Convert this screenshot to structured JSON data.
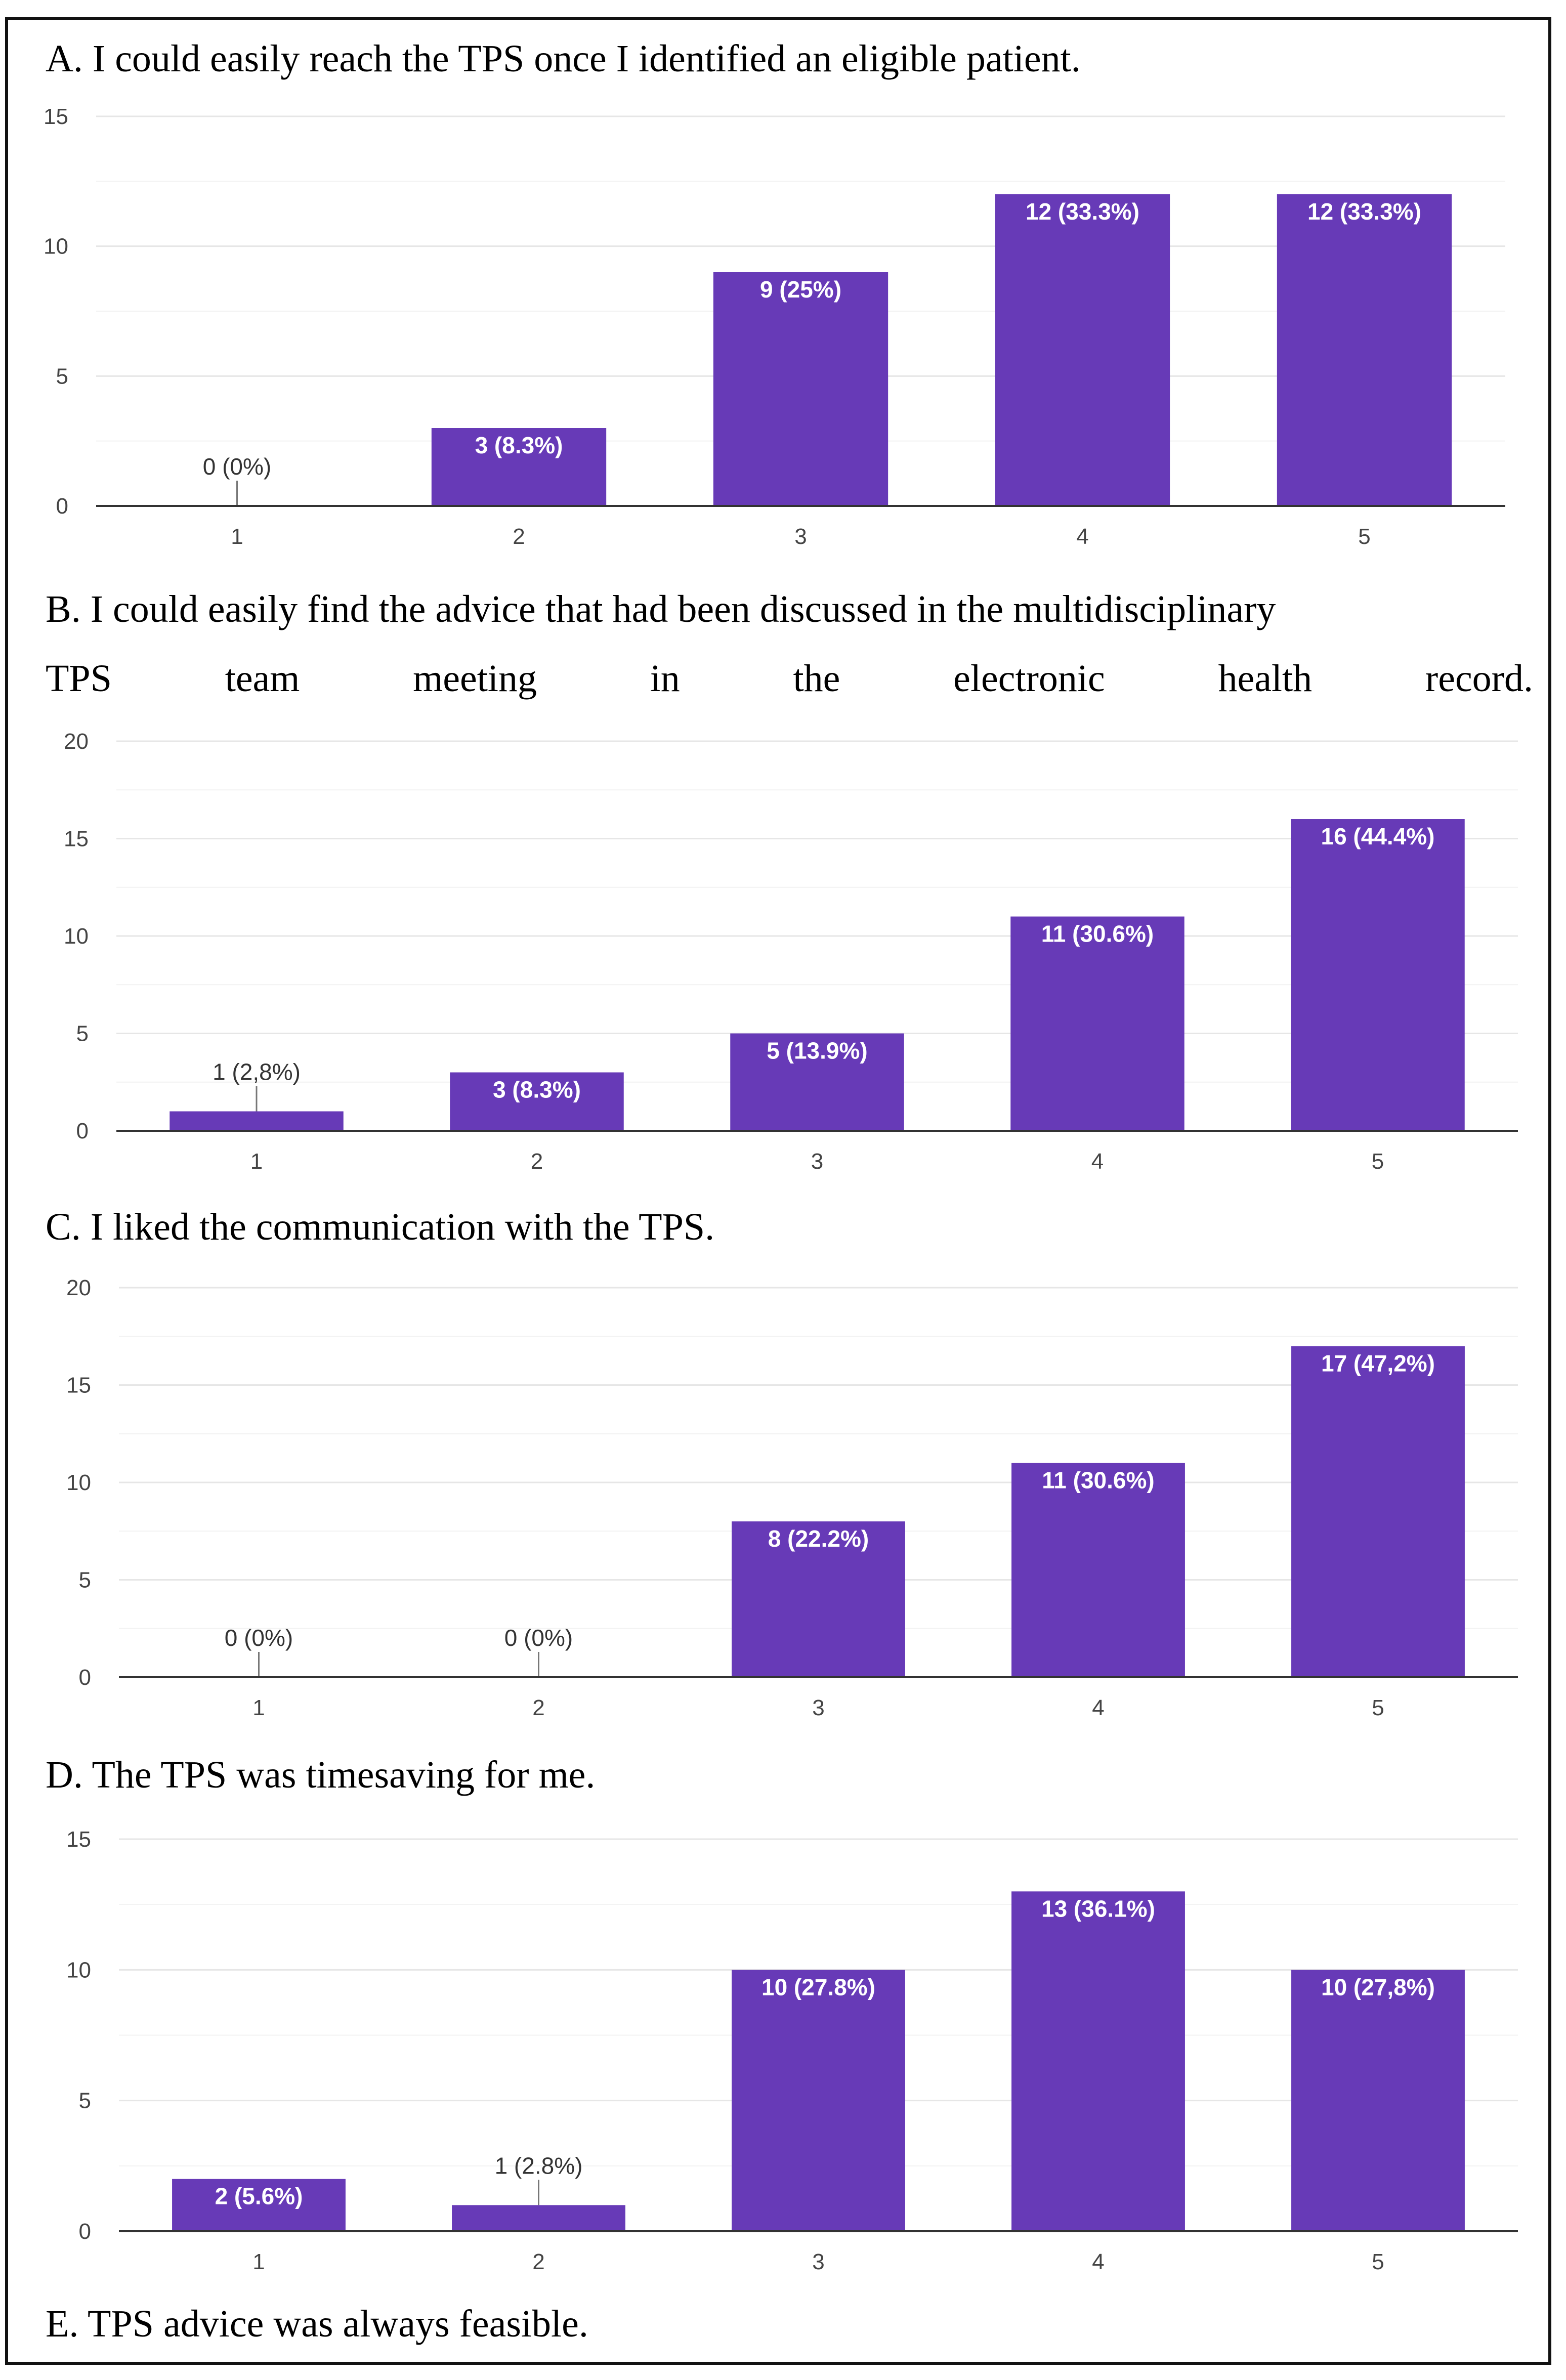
{
  "colors": {
    "bar": "#673ab7",
    "grid": "#e6e6e6",
    "axis": "#333333",
    "frame": "#111111"
  },
  "captions": {
    "a": "A. I could easily reach the TPS once I identified an eligible patient.",
    "b_line1": "B. I could easily find the advice that had been discussed in the multidisciplinary",
    "b_line2": "TPS team meeting in the electronic health record.",
    "c": "C. I liked the communication with the TPS.",
    "d": "D. The TPS was timesaving for me.",
    "e": "E. TPS advice was always feasible."
  },
  "chart_data": [
    {
      "type": "bar",
      "categories": [
        "1",
        "2",
        "3",
        "4",
        "5"
      ],
      "values": [
        0,
        3,
        9,
        12,
        12
      ],
      "data_labels": [
        "0 (0%)",
        "3 (8.3%)",
        "9 (25%)",
        "12 (33.3%)",
        "12 (33.3%)"
      ],
      "yticks": [
        "0",
        "5",
        "10",
        "15"
      ],
      "ylim": [
        0,
        15
      ],
      "grid": true
    },
    {
      "type": "bar",
      "categories": [
        "1",
        "2",
        "3",
        "4",
        "5"
      ],
      "values": [
        1,
        3,
        5,
        11,
        16
      ],
      "data_labels": [
        "1 (2,8%)",
        "3 (8.3%)",
        "5 (13.9%)",
        "11 (30.6%)",
        "16 (44.4%)"
      ],
      "yticks": [
        "0",
        "5",
        "10",
        "15",
        "20"
      ],
      "ylim": [
        0,
        20
      ],
      "grid": true
    },
    {
      "type": "bar",
      "categories": [
        "1",
        "2",
        "3",
        "4",
        "5"
      ],
      "values": [
        0,
        0,
        8,
        11,
        17
      ],
      "data_labels": [
        "0 (0%)",
        "0 (0%)",
        "8 (22.2%)",
        "11 (30.6%)",
        "17 (47,2%)"
      ],
      "yticks": [
        "0",
        "5",
        "10",
        "15",
        "20"
      ],
      "ylim": [
        0,
        20
      ],
      "grid": true
    },
    {
      "type": "bar",
      "categories": [
        "1",
        "2",
        "3",
        "4",
        "5"
      ],
      "values": [
        2,
        1,
        10,
        13,
        10
      ],
      "data_labels": [
        "2 (5.6%)",
        "1 (2.8%)",
        "10 (27.8%)",
        "13 (36.1%)",
        "10 (27,8%)"
      ],
      "yticks": [
        "0",
        "5",
        "10",
        "15"
      ],
      "ylim": [
        0,
        15
      ],
      "grid": true
    }
  ]
}
